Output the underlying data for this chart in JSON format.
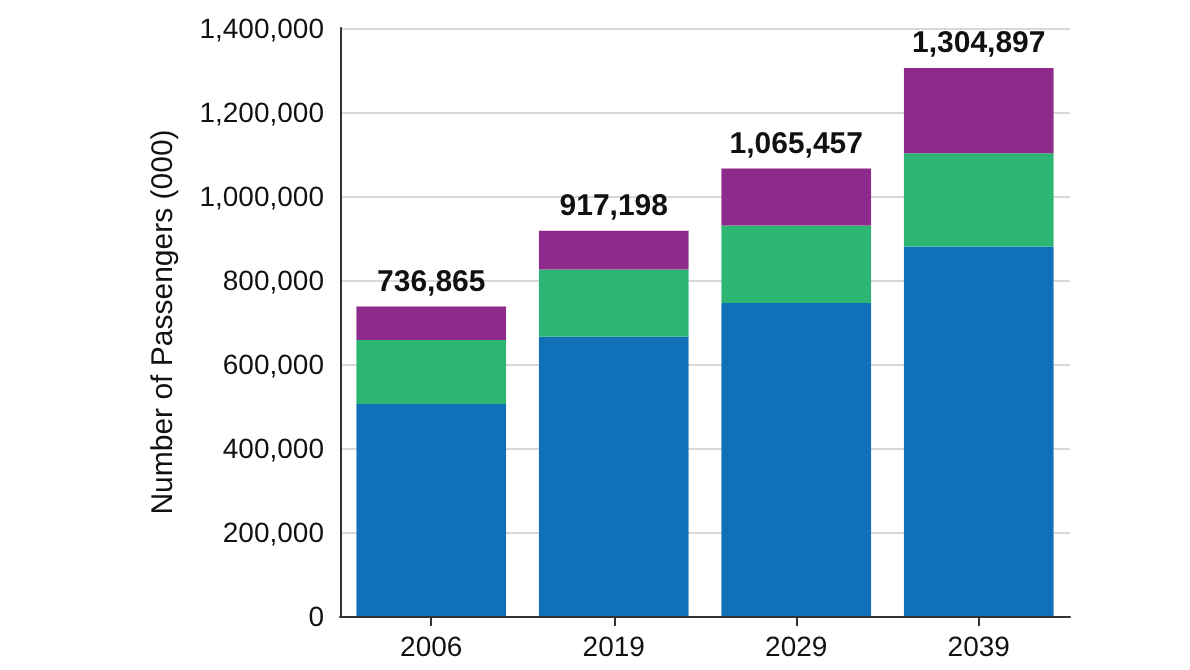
{
  "chart_data": {
    "type": "bar",
    "stacked": true,
    "ylabel": "Number of Passengers (000)",
    "categories": [
      "2006",
      "2019",
      "2029",
      "2039"
    ],
    "series": [
      {
        "color": "#1071b9",
        "values": [
          505000,
          665000,
          745000,
          880000
        ]
      },
      {
        "color": "#2db673",
        "values": [
          152000,
          160000,
          185000,
          222000
        ]
      },
      {
        "color": "#8e2a8c",
        "values": [
          79865,
          92198,
          135457,
          202897
        ]
      }
    ],
    "totals": [
      "736,865",
      "917,198",
      "1,065,457",
      "1,304,897"
    ],
    "ylim": [
      0,
      1400000
    ],
    "yticks": [
      0,
      {
        "value": 200000,
        "label": "200,000"
      },
      {
        "value": 400000,
        "label": "400,000"
      },
      {
        "value": 600000,
        "label": "600,000"
      },
      {
        "value": 800000,
        "label": "800,000"
      },
      {
        "value": 1000000,
        "label": "1,000,000"
      },
      {
        "value": 1200000,
        "label": "1,200,000"
      },
      {
        "value": 1400000,
        "label": "1,400,000"
      }
    ],
    "grid": "y"
  }
}
